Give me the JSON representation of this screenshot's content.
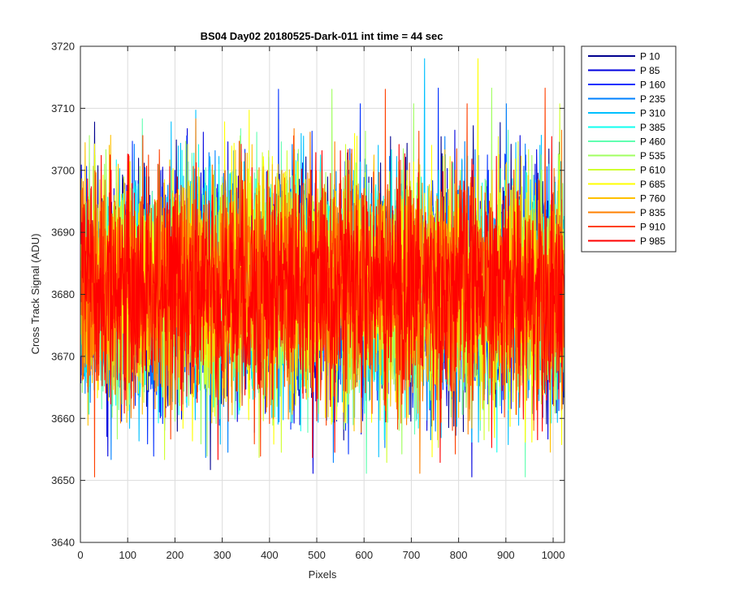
{
  "chart_data": {
    "type": "line",
    "title": "BS04 Day02 20180525-Dark-011 int time = 44 sec",
    "xlabel": "Pixels",
    "ylabel": "Cross Track Signal (ADU)",
    "xlim": [
      0,
      1024
    ],
    "ylim": [
      3640,
      3720
    ],
    "x_ticks": [
      0,
      100,
      200,
      300,
      400,
      500,
      600,
      700,
      800,
      900,
      1000
    ],
    "y_ticks": [
      3640,
      3650,
      3660,
      3670,
      3680,
      3690,
      3700,
      3710,
      3720
    ],
    "grid": true,
    "legend_position": "outside-top-right",
    "n_points_per_series": 1024,
    "noise_model": {
      "mean": 3681,
      "std": 9
    },
    "series": [
      {
        "name": "P 10",
        "color": "#00008f"
      },
      {
        "name": "P 85",
        "color": "#0000df"
      },
      {
        "name": "P 160",
        "color": "#0030ff"
      },
      {
        "name": "P 235",
        "color": "#0080ff"
      },
      {
        "name": "P 310",
        "color": "#00c0ff"
      },
      {
        "name": "P 385",
        "color": "#10ffef"
      },
      {
        "name": "P 460",
        "color": "#60ffb0"
      },
      {
        "name": "P 535",
        "color": "#a0ff60"
      },
      {
        "name": "P 610",
        "color": "#d0ff30"
      },
      {
        "name": "P 685",
        "color": "#ffff00"
      },
      {
        "name": "P 760",
        "color": "#ffc000"
      },
      {
        "name": "P 835",
        "color": "#ff8000"
      },
      {
        "name": "P 910",
        "color": "#ff4000"
      },
      {
        "name": "P 985",
        "color": "#ff0000"
      }
    ]
  }
}
